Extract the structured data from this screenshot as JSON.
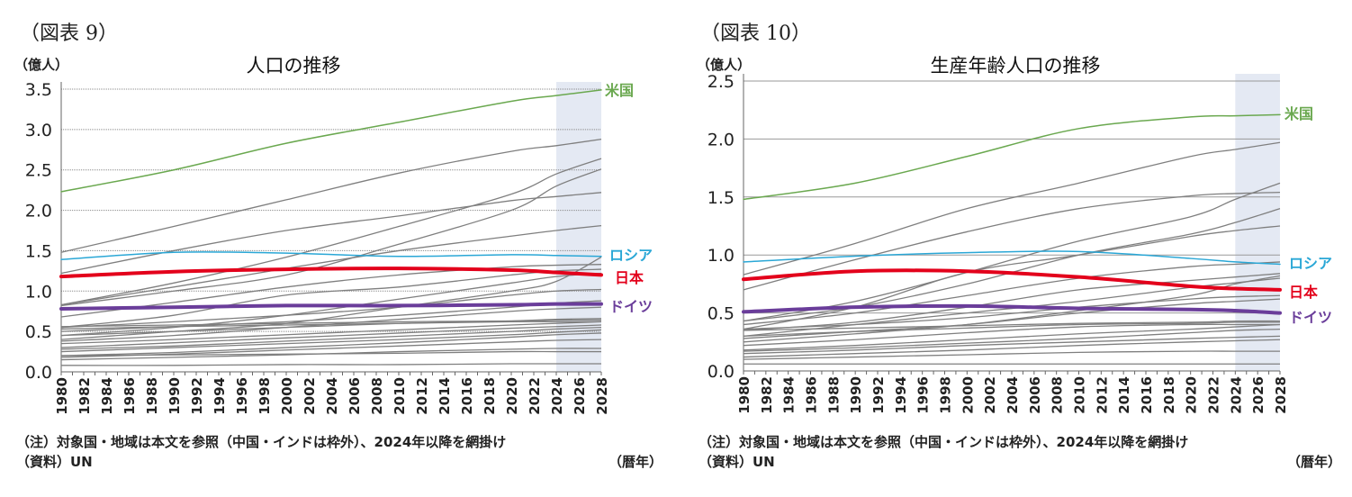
{
  "charts_meta": [
    {
      "figure_label": "（図表 9）",
      "note": "（注）対象国・地域は本文を参照（中国・インドは枠外）、2024年以降を網掛け",
      "source": "（資料）UN",
      "xunit": "（暦年）"
    },
    {
      "figure_label": "（図表 10）",
      "note": "（注）対象国・地域は本文を参照（中国・インドは枠外）、2024年以降を網掛け",
      "source": "（資料）UN",
      "xunit": "（暦年）"
    }
  ],
  "colors": {
    "us": "#6aa84f",
    "russia": "#2aa7d6",
    "japan": "#e3001b",
    "germany": "#6a3d9a",
    "other": "#7f7f7f",
    "shade": "#e4e9f3"
  },
  "chart_data": [
    {
      "type": "line",
      "title": "人口の推移",
      "ylabel": "（億人）",
      "xlabel": "（暦年）",
      "ylim": [
        0,
        3.5
      ],
      "yticks": [
        "0.0",
        "0.5",
        "1.0",
        "1.5",
        "2.0",
        "2.5",
        "3.0",
        "3.5"
      ],
      "xticks": [
        "1980",
        "1982",
        "1984",
        "1986",
        "1988",
        "1990",
        "1992",
        "1994",
        "1996",
        "1998",
        "2000",
        "2002",
        "2004",
        "2006",
        "2008",
        "2010",
        "2012",
        "2014",
        "2016",
        "2018",
        "2020",
        "2022",
        "2024",
        "2026",
        "2028"
      ],
      "xlim": [
        1980,
        2028
      ],
      "shaded_from": 2024,
      "grid": "dotted",
      "x": [
        1980,
        1990,
        2000,
        2010,
        2020,
        2024,
        2028
      ],
      "series": [
        {
          "name": "米国",
          "color_key": "us",
          "values": [
            2.23,
            2.5,
            2.83,
            3.09,
            3.35,
            3.42,
            3.49
          ]
        },
        {
          "name": "ロシア",
          "color_key": "russia",
          "values": [
            1.39,
            1.48,
            1.47,
            1.43,
            1.45,
            1.44,
            1.43
          ]
        },
        {
          "name": "日本",
          "color_key": "japan",
          "values": [
            1.18,
            1.24,
            1.27,
            1.28,
            1.26,
            1.23,
            1.2
          ]
        },
        {
          "name": "ドイツ",
          "color_key": "germany",
          "values": [
            0.78,
            0.8,
            0.82,
            0.82,
            0.83,
            0.84,
            0.84
          ]
        }
      ],
      "other_series": [
        [
          1.48,
          1.8,
          2.13,
          2.46,
          2.73,
          2.8,
          2.88
        ],
        [
          1.22,
          1.5,
          1.75,
          1.93,
          2.12,
          2.17,
          2.22
        ],
        [
          0.83,
          1.1,
          1.42,
          1.8,
          2.2,
          2.45,
          2.64
        ],
        [
          0.82,
          1.0,
          1.2,
          1.58,
          2.0,
          2.3,
          2.51
        ],
        [
          0.83,
          1.05,
          1.28,
          1.5,
          1.68,
          1.75,
          1.81
        ],
        [
          0.68,
          0.86,
          1.05,
          1.2,
          1.3,
          1.32,
          1.33
        ],
        [
          0.55,
          0.7,
          0.95,
          1.05,
          1.2,
          1.25,
          1.27
        ],
        [
          0.45,
          0.55,
          0.7,
          0.9,
          1.1,
          1.18,
          1.22
        ],
        [
          0.4,
          0.5,
          0.6,
          0.8,
          1.0,
          1.12,
          1.42
        ],
        [
          0.55,
          0.62,
          0.7,
          0.8,
          0.95,
          1.0,
          1.02
        ],
        [
          0.5,
          0.56,
          0.62,
          0.7,
          0.8,
          0.85,
          0.88
        ],
        [
          0.38,
          0.45,
          0.55,
          0.65,
          0.75,
          0.78,
          0.8
        ],
        [
          0.56,
          0.58,
          0.6,
          0.62,
          0.63,
          0.64,
          0.64
        ],
        [
          0.53,
          0.56,
          0.58,
          0.6,
          0.62,
          0.62,
          0.62
        ],
        [
          0.45,
          0.5,
          0.55,
          0.6,
          0.63,
          0.65,
          0.66
        ],
        [
          0.35,
          0.4,
          0.46,
          0.52,
          0.58,
          0.6,
          0.62
        ],
        [
          0.3,
          0.36,
          0.42,
          0.48,
          0.54,
          0.56,
          0.58
        ],
        [
          0.28,
          0.32,
          0.38,
          0.44,
          0.5,
          0.53,
          0.55
        ],
        [
          0.25,
          0.3,
          0.35,
          0.4,
          0.46,
          0.49,
          0.52
        ],
        [
          0.2,
          0.24,
          0.3,
          0.36,
          0.43,
          0.46,
          0.48
        ],
        [
          0.18,
          0.22,
          0.27,
          0.32,
          0.37,
          0.39,
          0.4
        ],
        [
          0.15,
          0.18,
          0.21,
          0.25,
          0.28,
          0.29,
          0.29
        ],
        [
          0.2,
          0.21,
          0.22,
          0.23,
          0.25,
          0.25,
          0.25
        ],
        [
          0.08,
          0.08,
          0.09,
          0.09,
          0.1,
          0.1,
          0.1
        ]
      ]
    },
    {
      "type": "line",
      "title": "生産年齢人口の推移",
      "ylabel": "（億人）",
      "xlabel": "（暦年）",
      "ylim": [
        0,
        2.5
      ],
      "yticks": [
        "0.0",
        "0.5",
        "1.0",
        "1.5",
        "2.0",
        "2.5"
      ],
      "xticks": [
        "1980",
        "1982",
        "1984",
        "1986",
        "1988",
        "1990",
        "1992",
        "1994",
        "1996",
        "1998",
        "2000",
        "2002",
        "2004",
        "2006",
        "2008",
        "2010",
        "2012",
        "2014",
        "2016",
        "2018",
        "2020",
        "2022",
        "2024",
        "2026",
        "2028"
      ],
      "xlim": [
        1980,
        2028
      ],
      "shaded_from": 2024,
      "grid": "solid",
      "x": [
        1980,
        1990,
        2000,
        2010,
        2020,
        2024,
        2028
      ],
      "series": [
        {
          "name": "米国",
          "color_key": "us",
          "values": [
            1.48,
            1.62,
            1.85,
            2.09,
            2.19,
            2.2,
            2.21
          ]
        },
        {
          "name": "ロシア",
          "color_key": "russia",
          "values": [
            0.94,
            0.99,
            1.02,
            1.03,
            0.97,
            0.94,
            0.92
          ]
        },
        {
          "name": "日本",
          "color_key": "japan",
          "values": [
            0.79,
            0.86,
            0.86,
            0.81,
            0.73,
            0.71,
            0.7
          ]
        },
        {
          "name": "ドイツ",
          "color_key": "germany",
          "values": [
            0.51,
            0.55,
            0.56,
            0.54,
            0.53,
            0.52,
            0.5
          ]
        }
      ],
      "other_series": [
        [
          0.83,
          1.1,
          1.4,
          1.62,
          1.85,
          1.91,
          1.97
        ],
        [
          0.7,
          0.96,
          1.2,
          1.4,
          1.51,
          1.53,
          1.54
        ],
        [
          0.43,
          0.6,
          0.85,
          1.12,
          1.33,
          1.48,
          1.62
        ],
        [
          0.43,
          0.55,
          0.75,
          1.0,
          1.18,
          1.28,
          1.4
        ],
        [
          0.36,
          0.55,
          0.85,
          1.0,
          1.16,
          1.21,
          1.25
        ],
        [
          0.4,
          0.5,
          0.65,
          0.8,
          0.9,
          0.92,
          0.94
        ],
        [
          0.35,
          0.42,
          0.55,
          0.7,
          0.78,
          0.81,
          0.84
        ],
        [
          0.3,
          0.4,
          0.5,
          0.6,
          0.72,
          0.76,
          0.8
        ],
        [
          0.25,
          0.32,
          0.4,
          0.52,
          0.65,
          0.75,
          0.82
        ],
        [
          0.36,
          0.4,
          0.46,
          0.55,
          0.62,
          0.64,
          0.65
        ],
        [
          0.28,
          0.34,
          0.4,
          0.5,
          0.58,
          0.6,
          0.62
        ],
        [
          0.35,
          0.37,
          0.39,
          0.41,
          0.42,
          0.43,
          0.43
        ],
        [
          0.3,
          0.34,
          0.37,
          0.4,
          0.41,
          0.42,
          0.42
        ],
        [
          0.22,
          0.27,
          0.33,
          0.38,
          0.4,
          0.4,
          0.4
        ],
        [
          0.18,
          0.22,
          0.27,
          0.32,
          0.36,
          0.38,
          0.4
        ],
        [
          0.17,
          0.2,
          0.24,
          0.28,
          0.33,
          0.35,
          0.36
        ],
        [
          0.15,
          0.18,
          0.22,
          0.25,
          0.28,
          0.29,
          0.3
        ],
        [
          0.12,
          0.15,
          0.18,
          0.22,
          0.25,
          0.26,
          0.27
        ],
        [
          0.1,
          0.12,
          0.14,
          0.16,
          0.17,
          0.17,
          0.17
        ],
        [
          0.06,
          0.06,
          0.06,
          0.06,
          0.06,
          0.06,
          0.06
        ]
      ]
    }
  ]
}
